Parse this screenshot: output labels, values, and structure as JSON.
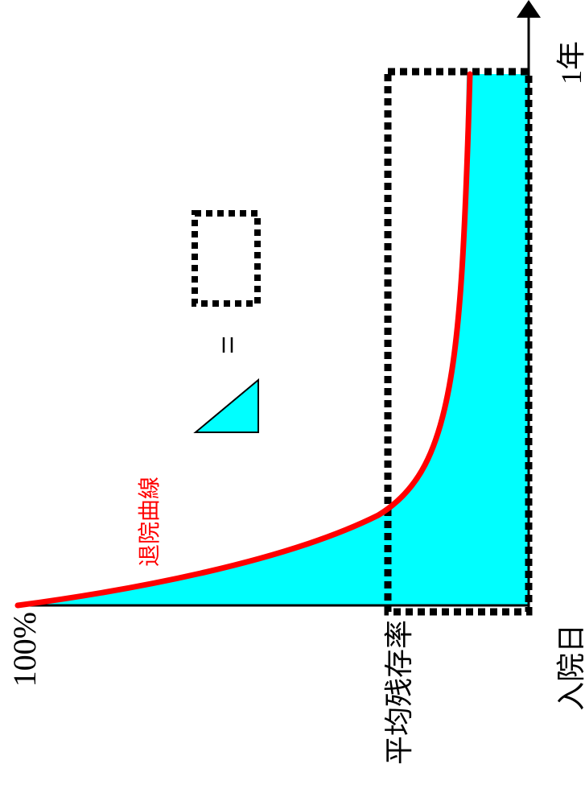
{
  "labels": {
    "y_top": "100%",
    "y_mid": "平均残存率",
    "x_origin": "入院日",
    "x_end": "1年",
    "curve": "退院曲線",
    "equals": "="
  },
  "colors": {
    "fill": "#00ffff",
    "curve": "#ff0000",
    "axis": "#000000",
    "dotted": "#000000"
  }
}
